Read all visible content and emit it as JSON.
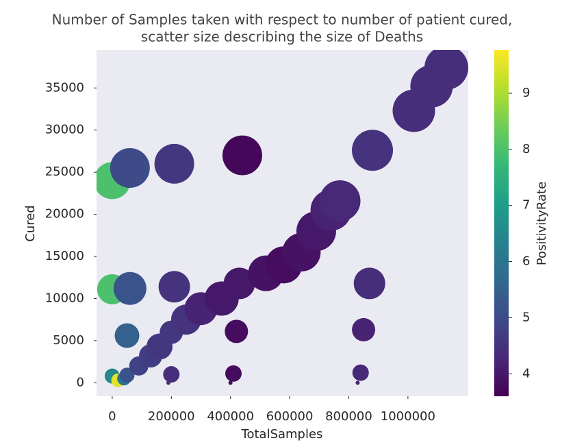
{
  "chart_data": {
    "type": "scatter",
    "title": [
      "Number of Samples taken with respect to number of patient cured,",
      "scatter size describing the size of Deaths"
    ],
    "xlabel": "TotalSamples",
    "ylabel": "Cured",
    "colorbar_label": "PositivityRate",
    "colormap": "viridis",
    "x": [
      0,
      60000,
      210000,
      440000,
      880000,
      0,
      60000,
      210000,
      430000,
      870000,
      50000,
      200000,
      420000,
      850000,
      0,
      20000,
      200000,
      410000,
      840000,
      190000,
      400000,
      830000,
      40000,
      50000,
      90000,
      130000,
      160000,
      250000,
      300000,
      370000,
      520000,
      580000,
      640000,
      690000,
      740000,
      770000,
      1020000,
      1080000,
      1130000
    ],
    "y": [
      24000,
      25500,
      26000,
      27000,
      27600,
      11100,
      11200,
      11400,
      11800,
      11800,
      5600,
      6000,
      6100,
      6300,
      800,
      300,
      1000,
      1100,
      1200,
      0,
      0,
      0,
      500,
      900,
      2000,
      3200,
      4300,
      7500,
      8800,
      10000,
      13000,
      14000,
      15500,
      18000,
      20500,
      21600,
      32300,
      35200,
      37400
    ],
    "sizes": [
      729,
      841,
      841,
      841,
      900,
      484,
      576,
      529,
      529,
      529,
      324,
      289,
      289,
      289,
      121,
      100,
      144,
      144,
      144,
      9,
      9,
      9,
      100,
      121,
      196,
      289,
      361,
      484,
      576,
      625,
      676,
      729,
      784,
      841,
      900,
      900,
      961,
      961,
      1024
    ],
    "color_values": [
      8.0,
      5.0,
      4.6,
      3.7,
      4.5,
      8.0,
      5.2,
      4.5,
      4.0,
      4.4,
      5.5,
      4.6,
      3.8,
      4.2,
      6.5,
      9.5,
      4.4,
      3.8,
      4.3,
      4.4,
      3.8,
      4.2,
      6.0,
      5.2,
      4.8,
      4.7,
      4.6,
      4.5,
      4.2,
      4.0,
      3.9,
      3.8,
      3.9,
      4.0,
      4.2,
      4.3,
      4.4,
      4.4,
      4.4
    ],
    "xlim": [
      -53000,
      1204000
    ],
    "ylim": [
      -1600,
      39500
    ],
    "clim": [
      3.6,
      9.77
    ],
    "xticks": [
      0,
      200000,
      400000,
      600000,
      800000,
      1000000
    ],
    "yticks": [
      0,
      5000,
      10000,
      15000,
      20000,
      25000,
      30000,
      35000
    ],
    "colorbar_ticks": [
      4,
      5,
      6,
      7,
      8,
      9
    ]
  }
}
